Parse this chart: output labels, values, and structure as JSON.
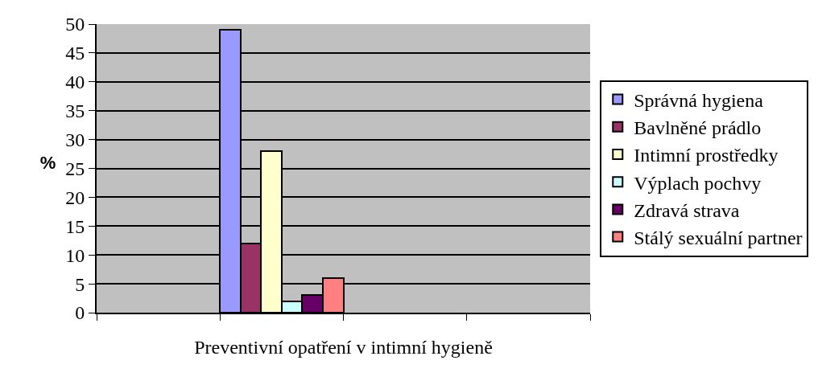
{
  "chart_data": {
    "type": "bar",
    "xlabel": "Preventivní opatření v intimní hygieně",
    "ylabel": "%",
    "categories": [
      null,
      null,
      null,
      null
    ],
    "series": [
      {
        "name": "Správná hygiena",
        "color": "#9999ff",
        "values": [
          null,
          49,
          null,
          null
        ]
      },
      {
        "name": "Bavlněné prádlo",
        "color": "#993366",
        "values": [
          null,
          12,
          null,
          null
        ]
      },
      {
        "name": "Intimní prostředky",
        "color": "#ffffcc",
        "values": [
          null,
          28,
          null,
          null
        ]
      },
      {
        "name": "Výplach pochvy",
        "color": "#ccffff",
        "values": [
          null,
          2,
          null,
          null
        ]
      },
      {
        "name": "Zdravá strava",
        "color": "#660066",
        "values": [
          null,
          3,
          null,
          null
        ]
      },
      {
        "name": "Stálý sexuální partner",
        "color": "#ff8080",
        "values": [
          null,
          6,
          null,
          null
        ]
      }
    ],
    "ylim": [
      0,
      50
    ],
    "yticks": [
      0,
      5,
      10,
      15,
      20,
      25,
      30,
      35,
      40,
      45,
      50
    ],
    "grid": "y",
    "legend": "right"
  }
}
